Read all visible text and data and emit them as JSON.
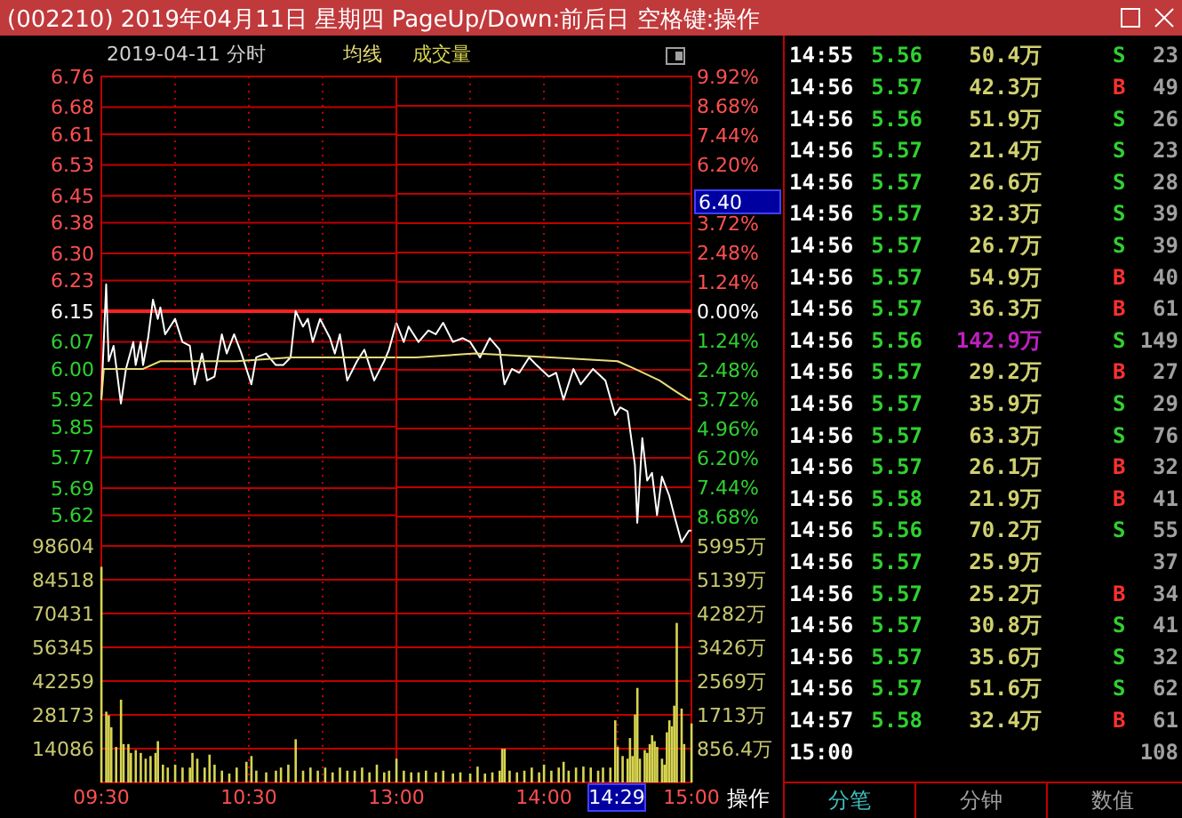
{
  "chart_data": [
    {
      "type": "line",
      "title": "(002210) 2019年04月11日 星期四 PageUp/Down:前后日 空格键:操作",
      "subtitle": "2019-04-11 分时",
      "x": [
        9.5,
        9.533,
        9.55,
        9.583,
        9.6,
        9.633,
        9.667,
        9.717,
        9.733,
        9.767,
        9.783,
        9.817,
        9.85,
        9.883,
        9.9,
        9.933,
        9.967,
        10,
        10.05,
        10.1,
        10.133,
        10.183,
        10.217,
        10.267,
        10.317,
        10.35,
        10.4,
        10.45,
        10.517,
        10.55,
        10.617,
        10.683,
        10.733,
        10.783,
        10.817,
        10.867,
        10.9,
        10.933,
        10.983,
        11.05,
        11.083,
        11.117,
        11.167,
        11.233,
        11.283,
        11.35,
        11.417,
        11.45,
        11.5
      ],
      "series": [
        {
          "color": "#ffffff",
          "values": [
            5.92,
            6.22,
            6.02,
            6.06,
            6.01,
            5.91,
            6.0,
            6.07,
            6.01,
            6.07,
            6.01,
            6.08,
            6.18,
            6.13,
            6.16,
            6.09,
            6.11,
            6.13,
            6.07,
            6.06,
            5.96,
            6.04,
            5.97,
            5.98,
            6.09,
            6.04,
            6.09,
            6.04,
            5.96,
            6.03,
            6.04,
            6.01,
            6.01,
            6.03,
            6.15,
            6.11,
            6.13,
            6.07,
            6.13,
            6.08,
            6.04,
            6.09,
            5.97,
            6.02,
            6.05,
            5.97,
            6.02,
            6.05,
            6.12
          ]
        },
        {
          "name": "均线",
          "color": "#e8dc78",
          "x": [
            9.5,
            9.517,
            9.617,
            9.783,
            9.9,
            10.017,
            10.417,
            10.783,
            11.15,
            11.5
          ],
          "values": [
            5.92,
            6.0,
            6.0,
            6.0,
            6.02,
            6.02,
            6.02,
            6.03,
            6.03,
            6.03
          ]
        }
      ],
      "xlim": [
        9.5,
        11.5
      ],
      "xticks": [
        9.5,
        10,
        10.5,
        11,
        11.5
      ],
      "ylim": [
        5.54,
        6.76
      ],
      "yticks": [
        6.76,
        6.68,
        6.61,
        6.53,
        6.45,
        6.38,
        {
          "value": 6.3,
          "label": "6.30"
        },
        6.23,
        6.15,
        6.07,
        {
          "value": 6,
          "label": "6.00"
        },
        5.92,
        5.85,
        5.77,
        5.69,
        5.62
      ],
      "ref_lines": [
        {
          "axis": "y",
          "value": 6.15,
          "color": "#ff2020"
        }
      ],
      "grid": true,
      "legend": "top",
      "tick_labels": "y"
    },
    {
      "type": "line",
      "x": [
        13,
        13.05,
        13.083,
        13.15,
        13.217,
        13.267,
        13.317,
        13.383,
        13.45,
        13.5,
        13.567,
        13.633,
        13.7,
        13.733,
        13.783,
        13.833,
        13.9,
        13.95,
        14.033,
        14.083,
        14.133,
        14.2,
        14.25,
        14.333,
        14.417,
        14.483,
        14.517,
        14.567,
        14.617,
        14.633,
        14.667,
        14.7,
        14.733,
        14.767,
        14.8,
        14.85,
        14.883,
        14.933,
        14.983,
        15
      ],
      "series": [
        {
          "color": "#ffffff",
          "values": [
            6.12,
            6.07,
            6.11,
            6.07,
            6.1,
            6.09,
            6.12,
            6.07,
            6.08,
            6.07,
            6.03,
            6.08,
            6.05,
            5.96,
            6.0,
            5.99,
            6.03,
            6.01,
            5.98,
            5.99,
            5.92,
            6.0,
            5.96,
            6.0,
            5.97,
            5.88,
            5.9,
            5.89,
            5.75,
            5.6,
            5.82,
            5.71,
            5.73,
            5.62,
            5.72,
            5.67,
            5.62,
            5.55,
            5.58,
            5.58
          ]
        },
        {
          "color": "#e8dc78",
          "x": [
            13,
            13.133,
            13.533,
            14.05,
            14.5,
            14.617,
            14.783,
            14.9,
            14.983,
            15
          ],
          "values": [
            6.03,
            6.03,
            6.04,
            6.03,
            6.02,
            6.0,
            5.97,
            5.94,
            5.92,
            5.92
          ]
        }
      ],
      "xlim": [
        13,
        15
      ],
      "xticks": [
        13,
        13.5,
        14,
        14.5,
        15
      ],
      "ylim": [
        5.54,
        6.76
      ],
      "y2lim": [
        -9.92,
        9.92
      ],
      "y2ticks": [
        {
          "value": 9.92,
          "label": "9.92%"
        },
        {
          "value": 8.68,
          "label": "8.68%"
        },
        {
          "value": 7.44,
          "label": "7.44%"
        },
        {
          "value": 6.2,
          "label": "6.20%"
        },
        {
          "value": 4.96,
          "label": null
        },
        {
          "value": 3.72,
          "label": "3.72%"
        },
        {
          "value": 2.48,
          "label": "2.48%"
        },
        {
          "value": 1.24,
          "label": "1.24%"
        },
        {
          "value": 0,
          "label": "0.00%"
        },
        {
          "value": -1.24,
          "label": "1.24%"
        },
        {
          "value": -2.48,
          "label": "2.48%"
        },
        {
          "value": -3.72,
          "label": "3.72%"
        },
        {
          "value": -4.96,
          "label": "4.96%"
        },
        {
          "value": -6.2,
          "label": "6.20%"
        },
        {
          "value": -7.44,
          "label": "7.44%"
        },
        {
          "value": -8.68,
          "label": "8.68%"
        }
      ],
      "ref_lines": [
        {
          "axis": "y",
          "value": 6.15,
          "color": "#ff2020"
        }
      ],
      "grid": true,
      "tick_labels": "y",
      "annotations": [
        "6.40"
      ]
    },
    {
      "type": "bar",
      "x": [
        9.5,
        9.533,
        9.55,
        9.567,
        9.6,
        9.633,
        9.65,
        9.683,
        9.7,
        9.733,
        9.767,
        9.8,
        9.833,
        9.867,
        9.883,
        9.917,
        9.95,
        10,
        10.05,
        10.1,
        10.117,
        10.15,
        10.2,
        10.233,
        10.267,
        10.317,
        10.367,
        10.417,
        10.483,
        10.517,
        10.55,
        10.617,
        10.683,
        10.717,
        10.767,
        10.817,
        10.867,
        10.917,
        10.967,
        11.017,
        11.067,
        11.117,
        11.167,
        11.217,
        11.267,
        11.317,
        11.367,
        11.417,
        11.45
      ],
      "series": [
        {
          "name": "成交量",
          "color": "#d8d450",
          "values": [
            89900,
            29500,
            28000,
            23000,
            14800,
            34500,
            16000,
            16000,
            12300,
            13500,
            12300,
            9900,
            11000,
            12300,
            17200,
            7400,
            6200,
            7400,
            6200,
            6200,
            12300,
            9900,
            6200,
            11600,
            7400,
            4900,
            3700,
            6200,
            8600,
            11000,
            4900,
            4200,
            4900,
            6200,
            7400,
            18000,
            4900,
            6200,
            4900,
            6200,
            4200,
            6200,
            4900,
            4900,
            6200,
            4200,
            7400,
            4200,
            4900
          ]
        }
      ],
      "xlim": [
        9.5,
        11.5
      ],
      "xticks": [
        {
          "value": 9.5,
          "label": "09:30"
        },
        {
          "value": 10,
          "label": null
        },
        {
          "value": 10.5,
          "label": "10:30"
        },
        {
          "value": 11,
          "label": null
        },
        {
          "value": 11.5,
          "label": null
        }
      ],
      "ylim": [
        0,
        98604
      ],
      "yticks": [
        14086,
        28173,
        42259,
        56345,
        70431,
        84518,
        98604
      ],
      "grid": true,
      "legend": "top"
    },
    {
      "type": "bar",
      "x": [
        13,
        13.05,
        13.1,
        13.15,
        13.2,
        13.267,
        13.317,
        13.383,
        13.433,
        13.5,
        13.55,
        13.6,
        13.65,
        13.7,
        13.717,
        13.733,
        13.767,
        13.817,
        13.867,
        13.917,
        13.967,
        14,
        14.05,
        14.1,
        14.133,
        14.167,
        14.217,
        14.267,
        14.317,
        14.367,
        14.4,
        14.45,
        14.483,
        14.5,
        14.533,
        14.567,
        14.583,
        14.6,
        14.617,
        14.633,
        14.65,
        14.683,
        14.7,
        14.717,
        14.733,
        14.75,
        14.767,
        14.8,
        14.817,
        14.833,
        14.85,
        14.867,
        14.883,
        14.9,
        14.933,
        14.95,
        15
      ],
      "series": [
        {
          "color": "#d8d450",
          "values": [
            9900,
            4900,
            4200,
            4200,
            4900,
            4200,
            4900,
            3700,
            4200,
            3700,
            6600,
            3700,
            4200,
            4900,
            14000,
            14000,
            4900,
            4200,
            4900,
            6200,
            4200,
            7400,
            4900,
            6200,
            8600,
            4900,
            6200,
            6600,
            6200,
            4900,
            6200,
            6200,
            25900,
            14800,
            11000,
            9900,
            18500,
            11000,
            28300,
            39400,
            9900,
            13500,
            12300,
            16000,
            19700,
            17200,
            14800,
            9900,
            7400,
            20900,
            25900,
            23400,
            32000,
            66500,
            30800,
            16000,
            24600
          ]
        }
      ],
      "xlim": [
        13,
        15
      ],
      "xticks": [
        {
          "value": 13,
          "label": "13:00"
        },
        {
          "value": 13.5,
          "label": null
        },
        {
          "value": 14,
          "label": "14:00"
        },
        {
          "value": 14.5,
          "label": null
        },
        {
          "value": 15,
          "label": "15:00"
        }
      ],
      "ylim": [
        0,
        98604
      ],
      "y2lim": [
        0,
        5995
      ],
      "y2ticks": [
        {
          "value": 856.4,
          "label": "856.4万"
        },
        {
          "value": 1713,
          "label": "1713万"
        },
        {
          "value": 2569,
          "label": "2569万"
        },
        {
          "value": 3426,
          "label": "3426万"
        },
        {
          "value": 4282,
          "label": "4282万"
        },
        {
          "value": 5139,
          "label": "5139万"
        },
        {
          "value": 5995,
          "label": "5995万"
        }
      ],
      "grid": true,
      "annotations": [
        "14:29",
        "操作"
      ]
    },
    {
      "type": "other",
      "annotations": [
        "14:55\t5.56\t50.4万\tS\t23",
        "14:56\t5.57\t42.3万\tB\t49",
        "14:56\t5.56\t51.9万\tS\t26",
        "14:56\t5.57\t21.4万\tS\t23",
        "14:56\t5.57\t26.6万\tS\t28",
        "14:56\t5.57\t32.3万\tS\t39",
        "14:56\t5.57\t26.7万\tS\t39",
        "14:56\t5.57\t54.9万\tB\t40",
        "14:56\t5.57\t36.3万\tB\t61",
        "14:56\t5.56\t142.9万\tS\t149",
        "14:56\t5.57\t29.2万\tB\t27",
        "14:56\t5.57\t35.9万\tS\t29",
        "14:56\t5.57\t63.3万\tS\t76",
        "14:56\t5.57\t26.1万\tB\t32",
        "14:56\t5.58\t21.9万\tB\t41",
        "14:56\t5.56\t70.2万\tS\t55",
        "14:56\t5.57\t25.9万\t\t37",
        "14:56\t5.57\t25.2万\tB\t34",
        "14:56\t5.57\t30.8万\tS\t41",
        "14:56\t5.57\t35.6万\tS\t32",
        "14:56\t5.57\t51.6万\tS\t62",
        "14:57\t5.58\t32.4万\tB\t61",
        "15:00\t\t\t\t108",
        "分笔",
        "分钟",
        "数值"
      ]
    }
  ]
}
